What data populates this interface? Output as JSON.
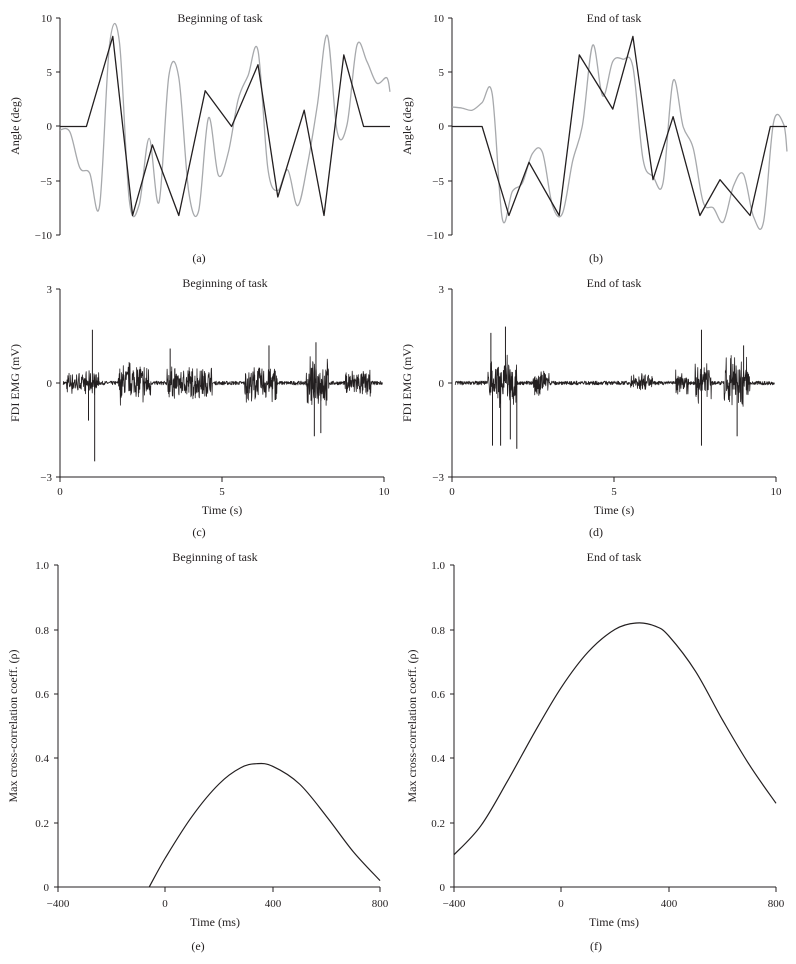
{
  "figure": {
    "panels": [
      {
        "key": "a",
        "title": "Beginning of task",
        "ylabel": "Angle (deg)",
        "xlabel": "",
        "panel_label": "(a)"
      },
      {
        "key": "b",
        "title": "End of task",
        "ylabel": "Angle (deg)",
        "xlabel": "",
        "panel_label": "(b)"
      },
      {
        "key": "c",
        "title": "Beginning of task",
        "ylabel": "FDI EMG (mV)",
        "xlabel": "Time (s)",
        "panel_label": "(c)"
      },
      {
        "key": "d",
        "title": "End of task",
        "ylabel": "FDI EMG (mV)",
        "xlabel": "Time (s)",
        "panel_label": "(d)"
      },
      {
        "key": "e",
        "title": "Beginning of task",
        "ylabel": "Max cross-correlation coeff. (ρ)",
        "xlabel": "Time (ms)",
        "panel_label": "(e)"
      },
      {
        "key": "f",
        "title": "End of task",
        "ylabel": "Max cross-correlation coeff. (ρ)",
        "xlabel": "Time (ms)",
        "panel_label": "(f)"
      }
    ]
  },
  "colors": {
    "target": "#231f20",
    "tracking": "#a7a9ac",
    "axis": "#231f20"
  },
  "chart_data": [
    {
      "type": "line",
      "panel": "a",
      "title": "Beginning of task",
      "ylabel": "Angle (deg)",
      "xlim": [
        0,
        10
      ],
      "ylim": [
        -10,
        10
      ],
      "yticks": [
        "10",
        "5",
        "0",
        "−5",
        "−10"
      ],
      "ytick_values": [
        10,
        5,
        0,
        -5,
        -10
      ],
      "series": [
        {
          "role": "target",
          "x": [
            0,
            0.8,
            1.6,
            2.2,
            2.8,
            3.6,
            4.4,
            5.2,
            6.0,
            6.6,
            7.4,
            8.0,
            8.6,
            9.2,
            10
          ],
          "y": [
            0,
            0,
            8.3,
            -8.2,
            -1.7,
            -8.2,
            3.3,
            0,
            5.7,
            -6.5,
            1.5,
            -8.2,
            6.6,
            0,
            0
          ]
        },
        {
          "role": "tracking",
          "x": [
            0,
            0.3,
            0.6,
            0.9,
            1.2,
            1.5,
            1.8,
            2.1,
            2.4,
            2.7,
            3.0,
            3.3,
            3.6,
            3.9,
            4.2,
            4.5,
            4.8,
            5.1,
            5.4,
            5.7,
            6.0,
            6.3,
            6.6,
            6.9,
            7.2,
            7.5,
            7.8,
            8.1,
            8.4,
            8.7,
            9.0,
            9.3,
            9.6,
            9.9,
            10
          ],
          "y": [
            -0.3,
            -0.5,
            -3.8,
            -4.3,
            -7.3,
            7.5,
            7.8,
            -6.8,
            -7.2,
            -1.1,
            -7.0,
            4.7,
            4.5,
            -6.0,
            -7.8,
            0.8,
            -4.5,
            -2.4,
            2.5,
            4.7,
            7.0,
            -3.9,
            -5.9,
            -4.0,
            -7.3,
            -3.5,
            2.0,
            8.4,
            -0.5,
            0.2,
            7.5,
            6.0,
            4.0,
            4.5,
            3.2
          ]
        }
      ]
    },
    {
      "type": "line",
      "panel": "b",
      "title": "End of task",
      "ylabel": "Angle (deg)",
      "xlim": [
        0,
        10
      ],
      "ylim": [
        -10,
        10
      ],
      "yticks": [
        "10",
        "5",
        "0",
        "−5",
        "−10"
      ],
      "ytick_values": [
        10,
        5,
        0,
        -5,
        -10
      ],
      "series": [
        {
          "role": "target",
          "x": [
            0,
            0.9,
            1.7,
            2.3,
            3.2,
            3.8,
            4.8,
            5.4,
            6.0,
            6.6,
            7.4,
            8.0,
            8.9,
            9.5,
            10
          ],
          "y": [
            0,
            0,
            -8.2,
            -3.3,
            -8.2,
            6.6,
            1.6,
            8.3,
            -4.9,
            0.9,
            -8.2,
            -4.9,
            -8.2,
            0,
            0
          ]
        },
        {
          "role": "tracking",
          "x": [
            0,
            0.3,
            0.6,
            0.9,
            1.2,
            1.5,
            1.8,
            2.1,
            2.4,
            2.7,
            3.0,
            3.3,
            3.6,
            3.9,
            4.2,
            4.5,
            4.8,
            5.1,
            5.4,
            5.7,
            6.0,
            6.3,
            6.6,
            6.9,
            7.2,
            7.5,
            7.8,
            8.1,
            8.4,
            8.7,
            9.0,
            9.3,
            9.6,
            9.9,
            10
          ],
          "y": [
            1.8,
            1.7,
            1.5,
            2.2,
            3.0,
            -8.5,
            -6.0,
            -5.2,
            -2.5,
            -2.4,
            -7.3,
            -8.0,
            -3.2,
            0.2,
            7.5,
            2.8,
            6.0,
            6.2,
            5.5,
            -3.0,
            -4.6,
            -5.2,
            4.2,
            0,
            -2.0,
            -7.0,
            -7.5,
            -8.8,
            -5.5,
            -4.4,
            -8.3,
            -8.8,
            0.4,
            0.2,
            -2.3
          ]
        }
      ]
    },
    {
      "type": "line",
      "panel": "c",
      "title": "Beginning of task",
      "xlabel": "Time (s)",
      "ylabel": "FDI EMG (mV)",
      "xlim": [
        0,
        10
      ],
      "ylim": [
        -3,
        3
      ],
      "xticks": [
        "0",
        "5",
        "10"
      ],
      "xtick_values": [
        0,
        5,
        10
      ],
      "yticks": [
        "3",
        "0",
        "−3"
      ],
      "ytick_values": [
        3,
        0,
        -3
      ],
      "bursts": [
        {
          "start": 0.2,
          "end": 1.2,
          "amp": 0.4
        },
        {
          "start": 1.8,
          "end": 2.8,
          "amp": 0.75
        },
        {
          "start": 3.3,
          "end": 4.7,
          "amp": 0.6
        },
        {
          "start": 5.7,
          "end": 6.7,
          "amp": 0.7
        },
        {
          "start": 7.6,
          "end": 8.3,
          "amp": 0.9
        },
        {
          "start": 8.8,
          "end": 9.6,
          "amp": 0.5
        }
      ],
      "spikes": [
        {
          "x": 1.0,
          "y": 1.7
        },
        {
          "x": 1.07,
          "y": -2.5
        },
        {
          "x": 0.88,
          "y": -1.2
        },
        {
          "x": 3.4,
          "y": 1.1
        },
        {
          "x": 7.85,
          "y": -1.7
        },
        {
          "x": 7.9,
          "y": 1.3
        },
        {
          "x": 8.05,
          "y": -1.6
        },
        {
          "x": 6.45,
          "y": 1.2
        }
      ]
    },
    {
      "type": "line",
      "panel": "d",
      "title": "End of task",
      "xlabel": "Time (s)",
      "ylabel": "FDI EMG (mV)",
      "xlim": [
        0,
        10
      ],
      "ylim": [
        -3,
        3
      ],
      "xticks": [
        "0",
        "5",
        "10"
      ],
      "xtick_values": [
        0,
        5,
        10
      ],
      "yticks": [
        "3",
        "0",
        "−3"
      ],
      "ytick_values": [
        3,
        0,
        -3
      ],
      "bursts": [
        {
          "start": 1.1,
          "end": 2.0,
          "amp": 0.9
        },
        {
          "start": 2.5,
          "end": 3.0,
          "amp": 0.45
        },
        {
          "start": 5.5,
          "end": 6.2,
          "amp": 0.35
        },
        {
          "start": 6.9,
          "end": 7.3,
          "amp": 0.5
        },
        {
          "start": 7.5,
          "end": 8.0,
          "amp": 0.7
        },
        {
          "start": 8.4,
          "end": 9.2,
          "amp": 0.9
        }
      ],
      "spikes": [
        {
          "x": 1.2,
          "y": 1.6
        },
        {
          "x": 1.25,
          "y": -2.0
        },
        {
          "x": 1.5,
          "y": -2.0
        },
        {
          "x": 1.65,
          "y": 1.8
        },
        {
          "x": 1.8,
          "y": -1.8
        },
        {
          "x": 2.0,
          "y": -2.1
        },
        {
          "x": 7.7,
          "y": 1.7
        },
        {
          "x": 7.7,
          "y": -2.0
        },
        {
          "x": 8.8,
          "y": -1.7
        },
        {
          "x": 9.0,
          "y": 1.2
        }
      ]
    },
    {
      "type": "line",
      "panel": "e",
      "title": "Beginning of task",
      "xlabel": "Time (ms)",
      "ylabel": "Max cross-correlation coeff. (ρ)",
      "xlim": [
        -400,
        800
      ],
      "ylim": [
        0,
        1
      ],
      "xticks": [
        "−400",
        "0",
        "400",
        "800"
      ],
      "xtick_values": [
        -400,
        0,
        400,
        800
      ],
      "yticks": [
        "1.0",
        "0.8",
        "0.6",
        "0.4",
        "0.2",
        "0"
      ],
      "ytick_values": [
        1,
        0.8,
        0.6,
        0.4,
        0.2,
        0
      ],
      "series": [
        {
          "x": [
            -60,
            0,
            100,
            200,
            280,
            340,
            400,
            500,
            600,
            700,
            800
          ],
          "y": [
            0,
            0.09,
            0.22,
            0.32,
            0.37,
            0.383,
            0.375,
            0.32,
            0.22,
            0.11,
            0.02
          ]
        }
      ]
    },
    {
      "type": "line",
      "panel": "f",
      "title": "End of task",
      "xlabel": "Time (ms)",
      "ylabel": "Max cross-correlation coeff. (ρ)",
      "xlim": [
        -400,
        800
      ],
      "ylim": [
        0,
        1
      ],
      "xticks": [
        "−400",
        "0",
        "400",
        "800"
      ],
      "xtick_values": [
        -400,
        0,
        400,
        800
      ],
      "yticks": [
        "1.0",
        "0.8",
        "0.6",
        "0.4",
        "0.2",
        "0"
      ],
      "ytick_values": [
        1,
        0.8,
        0.6,
        0.4,
        0.2,
        0
      ],
      "series": [
        {
          "x": [
            -400,
            -300,
            -200,
            -100,
            0,
            100,
            200,
            280,
            350,
            400,
            500,
            600,
            700,
            800
          ],
          "y": [
            0.1,
            0.19,
            0.33,
            0.48,
            0.62,
            0.73,
            0.8,
            0.82,
            0.81,
            0.78,
            0.67,
            0.52,
            0.38,
            0.26
          ]
        }
      ]
    }
  ]
}
